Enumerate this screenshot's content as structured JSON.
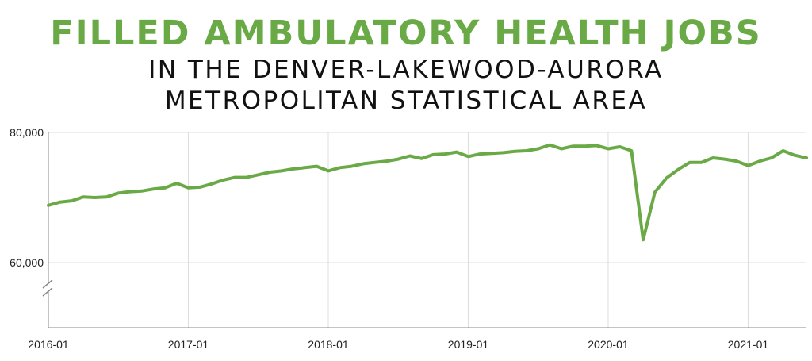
{
  "title": "FILLED AMBULATORY HEALTH JOBS",
  "subtitle_line1": "IN THE DENVER-LAKEWOOD-AURORA",
  "subtitle_line2": "METROPOLITAN STATISTICAL AREA",
  "colors": {
    "series": "#6aaa46",
    "title": "#6aaa46",
    "grid": "#dddddd",
    "axis": "#888888"
  },
  "chart_data": {
    "type": "line",
    "title": "FILLED AMBULATORY HEALTH JOBS",
    "xlabel": "",
    "ylabel": "",
    "ylim": [
      50000,
      80000
    ],
    "y_ticks": [
      {
        "value": 60000,
        "label": "60,000"
      },
      {
        "value": 80000,
        "label": "80,000"
      }
    ],
    "y_axis_break": true,
    "x_ticks": [
      "2016-01",
      "2017-01",
      "2018-01",
      "2019-01",
      "2020-01",
      "2021-01"
    ],
    "grid": true,
    "legend": "none",
    "x": [
      "2016-01",
      "2016-02",
      "2016-03",
      "2016-04",
      "2016-05",
      "2016-06",
      "2016-07",
      "2016-08",
      "2016-09",
      "2016-10",
      "2016-11",
      "2016-12",
      "2017-01",
      "2017-02",
      "2017-03",
      "2017-04",
      "2017-05",
      "2017-06",
      "2017-07",
      "2017-08",
      "2017-09",
      "2017-10",
      "2017-11",
      "2017-12",
      "2018-01",
      "2018-02",
      "2018-03",
      "2018-04",
      "2018-05",
      "2018-06",
      "2018-07",
      "2018-08",
      "2018-09",
      "2018-10",
      "2018-11",
      "2018-12",
      "2019-01",
      "2019-02",
      "2019-03",
      "2019-04",
      "2019-05",
      "2019-06",
      "2019-07",
      "2019-08",
      "2019-09",
      "2019-10",
      "2019-11",
      "2019-12",
      "2020-01",
      "2020-02",
      "2020-03",
      "2020-04",
      "2020-05",
      "2020-06",
      "2020-07",
      "2020-08",
      "2020-09",
      "2020-10",
      "2020-11",
      "2020-12",
      "2021-01",
      "2021-02",
      "2021-03",
      "2021-04",
      "2021-05",
      "2021-06"
    ],
    "series": [
      {
        "values": [
          68800,
          69300,
          69500,
          70100,
          70000,
          70100,
          70700,
          70900,
          71000,
          71300,
          71500,
          72200,
          71500,
          71600,
          72100,
          72700,
          73100,
          73100,
          73500,
          73900,
          74100,
          74400,
          74600,
          74800,
          74100,
          74600,
          74800,
          75200,
          75400,
          75600,
          75900,
          76400,
          76000,
          76600,
          76700,
          77000,
          76300,
          76700,
          76800,
          76900,
          77100,
          77200,
          77500,
          78100,
          77500,
          77900,
          77900,
          78000,
          77500,
          77800,
          77200,
          63500,
          70800,
          73000,
          74300,
          75400,
          75400,
          76100,
          75900,
          75600,
          74900,
          75600,
          76100,
          77200,
          76500,
          76100
        ]
      }
    ]
  }
}
